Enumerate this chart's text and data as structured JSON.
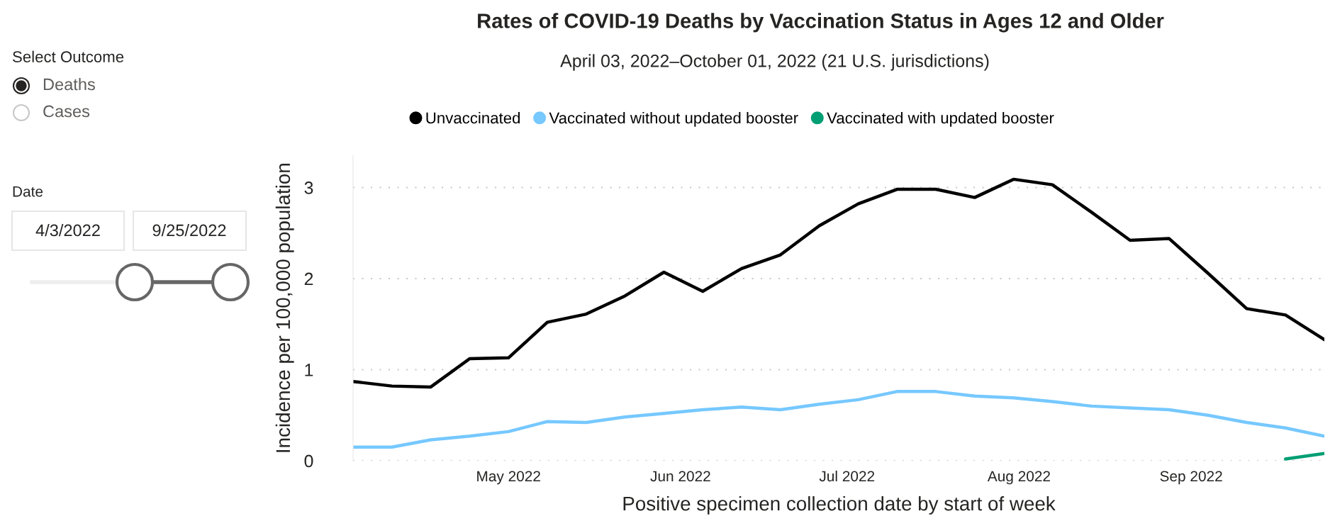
{
  "chart_data": {
    "type": "line",
    "title": "Rates of COVID-19 Deaths by Vaccination Status in Ages 12 and Older",
    "subtitle": "April 03, 2022–October 01, 2022 (21 U.S. jurisdictions)",
    "xlabel": "Positive specimen collection date by start of week",
    "ylabel": "Incidence per 100,000 population",
    "x": [
      "2022-04-03",
      "2022-04-10",
      "2022-04-17",
      "2022-04-24",
      "2022-05-01",
      "2022-05-08",
      "2022-05-15",
      "2022-05-22",
      "2022-05-29",
      "2022-06-05",
      "2022-06-12",
      "2022-06-19",
      "2022-06-26",
      "2022-07-03",
      "2022-07-10",
      "2022-07-17",
      "2022-07-24",
      "2022-07-31",
      "2022-08-07",
      "2022-08-14",
      "2022-08-21",
      "2022-08-28",
      "2022-09-04",
      "2022-09-11",
      "2022-09-18",
      "2022-09-25"
    ],
    "series": [
      {
        "name": "Unvaccinated",
        "color": "#000000",
        "values": [
          0.87,
          0.82,
          0.81,
          1.12,
          1.13,
          1.52,
          1.61,
          1.81,
          2.07,
          1.86,
          2.11,
          2.26,
          2.58,
          2.82,
          2.98,
          2.98,
          2.89,
          3.09,
          3.03,
          2.73,
          2.42,
          2.44,
          2.06,
          1.67,
          1.6,
          1.33
        ]
      },
      {
        "name": "Vaccinated without updated booster",
        "color": "#76c8ff",
        "values": [
          0.15,
          0.15,
          0.23,
          0.27,
          0.32,
          0.43,
          0.42,
          0.48,
          0.52,
          0.56,
          0.59,
          0.56,
          0.62,
          0.67,
          0.76,
          0.76,
          0.71,
          0.69,
          0.65,
          0.6,
          0.58,
          0.56,
          0.5,
          0.42,
          0.36,
          0.27
        ]
      },
      {
        "name": "Vaccinated with updated booster",
        "color": "#009e73",
        "values": [
          null,
          null,
          null,
          null,
          null,
          null,
          null,
          null,
          null,
          null,
          null,
          null,
          null,
          null,
          null,
          null,
          null,
          null,
          null,
          null,
          null,
          null,
          null,
          null,
          0.02,
          0.08
        ]
      }
    ],
    "xlim": [
      "2022-04-03",
      "2022-09-25"
    ],
    "xticks": [
      {
        "value": "2022-05-01",
        "label": "May 2022"
      },
      {
        "value": "2022-06-01",
        "label": "Jun 2022"
      },
      {
        "value": "2022-07-01",
        "label": "Jul 2022"
      },
      {
        "value": "2022-08-01",
        "label": "Aug 2022"
      },
      {
        "value": "2022-09-01",
        "label": "Sep 2022"
      }
    ],
    "ylim": [
      0,
      3.35
    ],
    "yticks": [
      0,
      1,
      2,
      3
    ],
    "grid": "y",
    "legend": "top",
    "line_style": "solid",
    "annotations": [
      "Select Outcome",
      "Deaths",
      "Cases",
      "Date",
      "4/3/2022",
      "9/25/2022"
    ]
  }
}
